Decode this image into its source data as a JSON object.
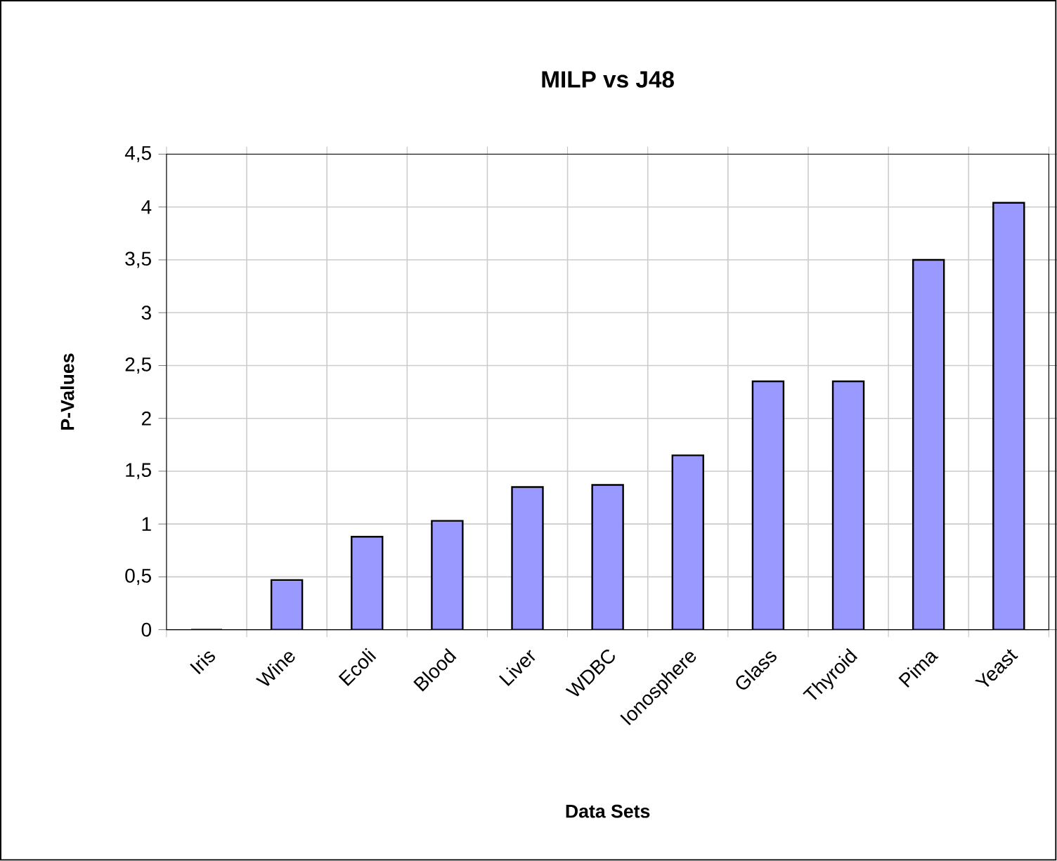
{
  "chart_data": {
    "type": "bar",
    "title": "MILP vs J48",
    "xlabel": "Data Sets",
    "ylabel": "P-Values",
    "categories": [
      "Iris",
      "Wine",
      "Ecoli",
      "Blood",
      "Liver",
      "WDBC",
      "Ionosphere",
      "Glass",
      "Thyroid",
      "Pima",
      "Yeast"
    ],
    "values": [
      0,
      0.47,
      0.88,
      1.03,
      1.35,
      1.37,
      1.65,
      2.35,
      2.35,
      3.5,
      4.04
    ],
    "color": "#9999ff",
    "ylim": [
      0,
      4.5
    ],
    "yticks": [
      0,
      {
        "value": 0.5,
        "label": "0,5"
      },
      1,
      {
        "value": 1.5,
        "label": "1,5"
      },
      2,
      {
        "value": 2.5,
        "label": "2,5"
      },
      3,
      {
        "value": 3.5,
        "label": "3,5"
      },
      4,
      {
        "value": 4.5,
        "label": "4,5"
      }
    ],
    "grid": true
  }
}
